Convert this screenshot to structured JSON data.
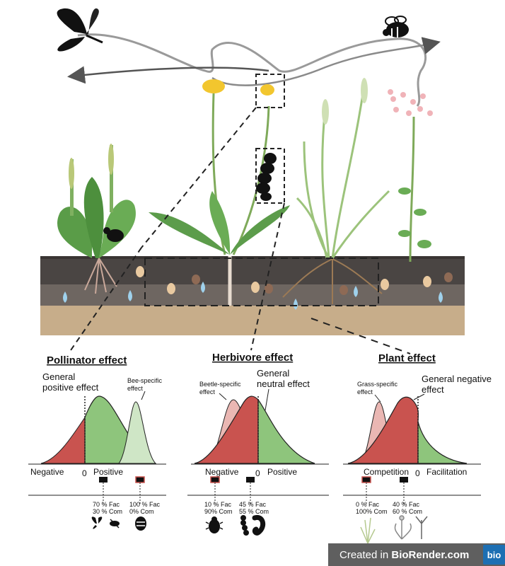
{
  "panels": {
    "pollinator": {
      "title": "Pollinator effect",
      "general_line1": "General",
      "general_line2": "positive effect",
      "specific_line1": "Bee-specific",
      "specific_line2": "effect",
      "axis_left": "Negative",
      "axis_zero": "0",
      "axis_right": "Positive",
      "stat1_line1": "70 % Fac",
      "stat1_line2": "30 % Com",
      "stat2_line1": "100 % Fac",
      "stat2_line2": "0% Com"
    },
    "herbivore": {
      "title": "Herbivore effect",
      "specific_line1": "Beetle-specific",
      "specific_line2": "effect",
      "general_line1": "General",
      "general_line2": "neutral effect",
      "axis_left": "Negative",
      "axis_zero": "0",
      "axis_right": "Positive",
      "stat1_line1": "10 % Fac",
      "stat1_line2": "90% Com",
      "stat2_line1": "45 % Fac",
      "stat2_line2": "55 % Com"
    },
    "plant": {
      "title": "Plant effect",
      "specific_line1": "Grass-specific",
      "specific_line2": "effect",
      "general_line1": "General negative",
      "general_line2": "effect",
      "axis_left": "Competition",
      "axis_zero": "0",
      "axis_right": "Facilitation",
      "stat1_line1": "0 % Fac",
      "stat1_line2": "100% Com",
      "stat2_line1": "40 % Fac",
      "stat2_line2": "60 % Com"
    }
  },
  "credit": {
    "prefix": "Created in ",
    "brand": "BioRender.com",
    "logo": "bio"
  },
  "colors": {
    "negative_red": "#c9534f",
    "positive_green": "#8ec57c",
    "specific_light_green": "#cfe6c6",
    "specific_light_red": "#eab7b3",
    "soil_top": "#4a4543",
    "soil_mid": "#6e6661",
    "soil_bottom": "#c7ad8a",
    "water": "#9fd1ec"
  },
  "icons": [
    "butterfly-icon",
    "bee-icon",
    "caterpillar-icon",
    "beetle-icon",
    "dandelion-icon",
    "plantain-icon",
    "grass-icon",
    "centaury-icon"
  ]
}
